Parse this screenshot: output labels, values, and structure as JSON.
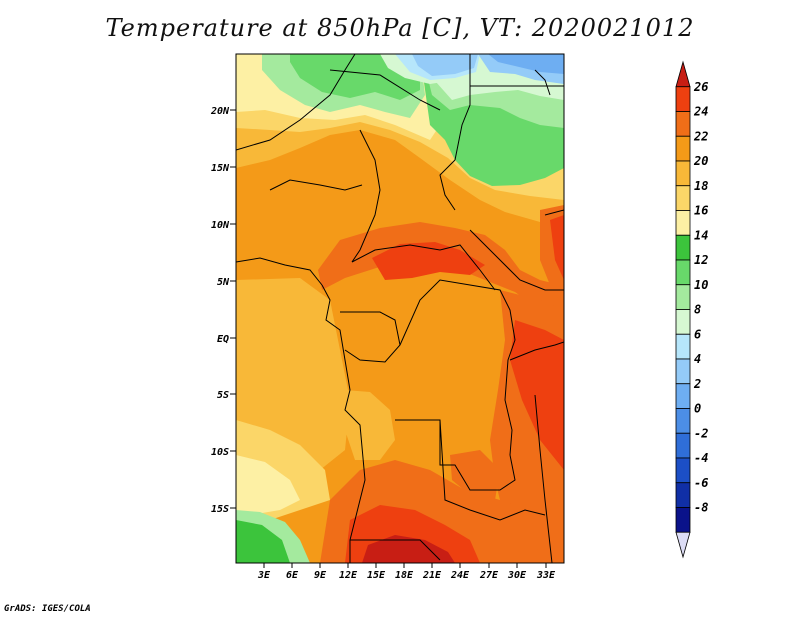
{
  "title": "Temperature at 850hPa [C], VT: 2020021012",
  "footer": "GrADS: IGES/COLA",
  "map": {
    "lat_ticks": [
      "20N",
      "15N",
      "10N",
      "5N",
      "EQ",
      "5S",
      "10S",
      "15S"
    ],
    "lon_ticks": [
      "3E",
      "6E",
      "9E",
      "12E",
      "15E",
      "18E",
      "21E",
      "24E",
      "27E",
      "30E",
      "33E"
    ]
  },
  "colorbar": {
    "labels": [
      "26",
      "24",
      "22",
      "20",
      "18",
      "16",
      "14",
      "12",
      "10",
      "8",
      "6",
      "4",
      "2",
      "0",
      "-2",
      "-4",
      "-6",
      "-8"
    ],
    "colors": [
      "#c81e14",
      "#ee4010",
      "#f06e18",
      "#f49a18",
      "#f8b838",
      "#fbd668",
      "#fdf0a4",
      "#3cc43c",
      "#68d96a",
      "#a4ea9e",
      "#d6f8d2",
      "#b6e6fb",
      "#94cbf8",
      "#6eaef2",
      "#4c8ee6",
      "#2f6ed8",
      "#1c4fc6",
      "#102fa6",
      "#0a128a",
      "#dcdcf5"
    ]
  }
}
